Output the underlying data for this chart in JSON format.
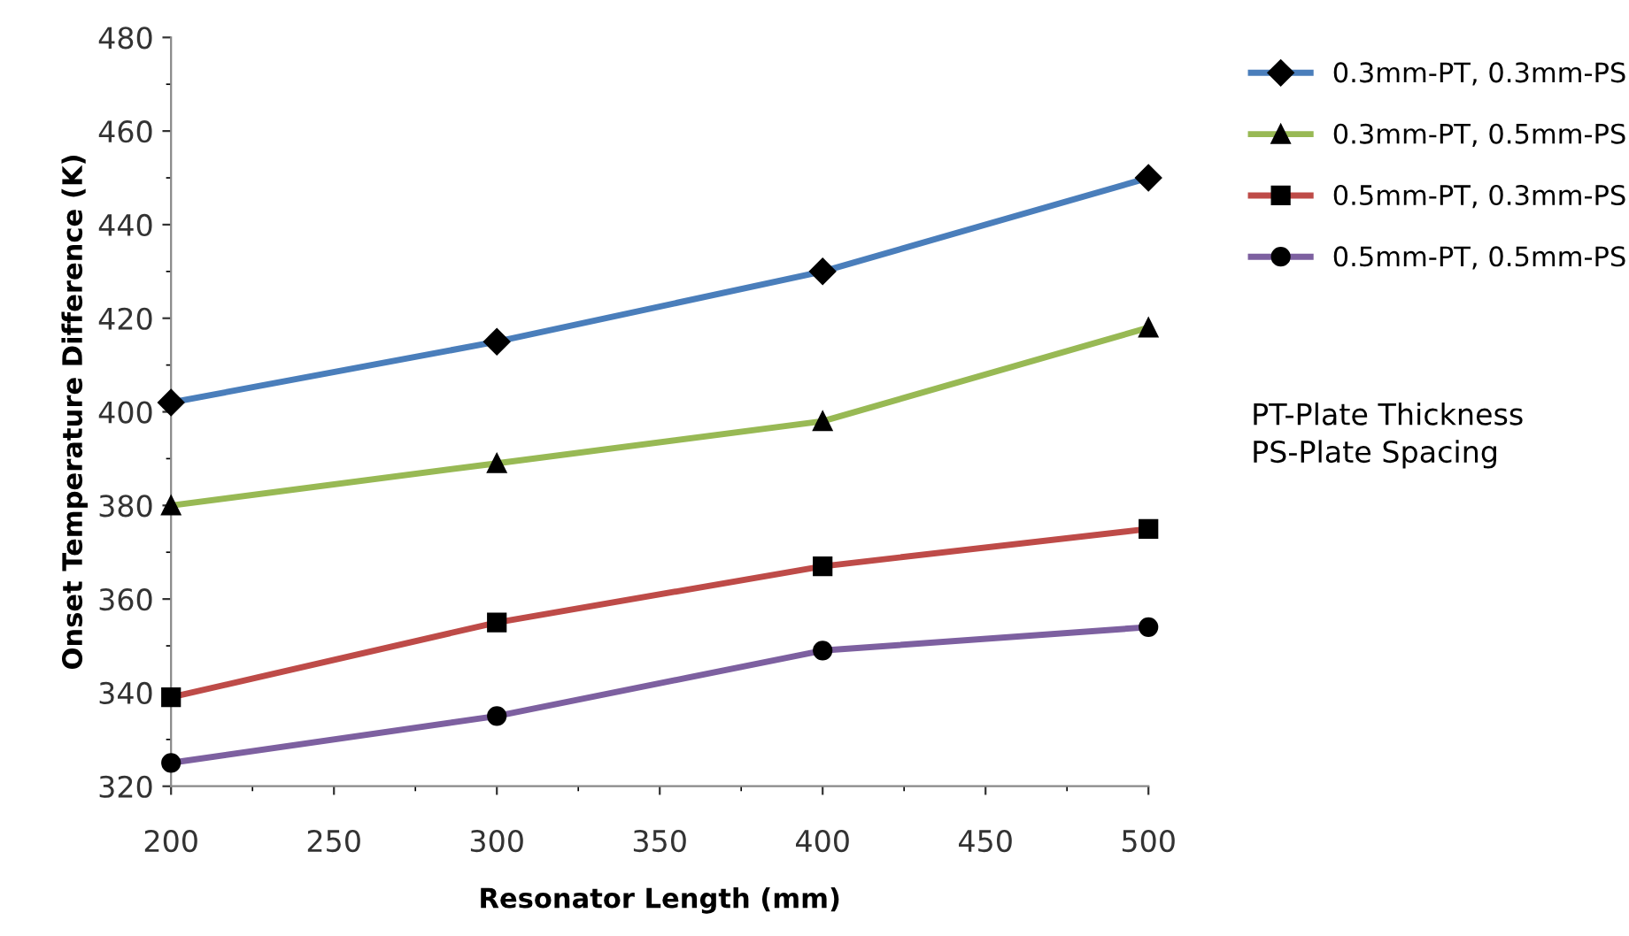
{
  "chart_data": {
    "type": "line",
    "xlabel": "Resonator Length (mm)",
    "ylabel": "Onset Temperature Difference (K)",
    "x": [
      200,
      300,
      400,
      500
    ],
    "series": [
      {
        "name": "0.3mm-PT, 0.3mm-PS",
        "color": "#4a7ebb",
        "marker": "diamond",
        "values": [
          402,
          415,
          430,
          450
        ]
      },
      {
        "name": "0.3mm-PT, 0.5mm-PS",
        "color": "#98b954",
        "marker": "triangle",
        "values": [
          380,
          389,
          398,
          418
        ]
      },
      {
        "name": "0.5mm-PT, 0.3mm-PS",
        "color": "#be4b48",
        "marker": "square",
        "values": [
          339,
          355,
          367,
          375
        ]
      },
      {
        "name": "0.5mm-PT, 0.5mm-PS",
        "color": "#7d60a0",
        "marker": "circle",
        "values": [
          325,
          335,
          349,
          354
        ]
      }
    ],
    "xlim": [
      200,
      500
    ],
    "xticks": [
      200,
      250,
      300,
      350,
      400,
      450,
      500
    ],
    "ylim": [
      320,
      480
    ],
    "yticks": [
      320,
      340,
      360,
      380,
      400,
      420,
      440,
      460,
      480
    ],
    "grid": false,
    "legend": "right",
    "line_style": "solid",
    "annotations": [
      "PT-Plate Thickness\nPS-Plate Spacing"
    ]
  }
}
